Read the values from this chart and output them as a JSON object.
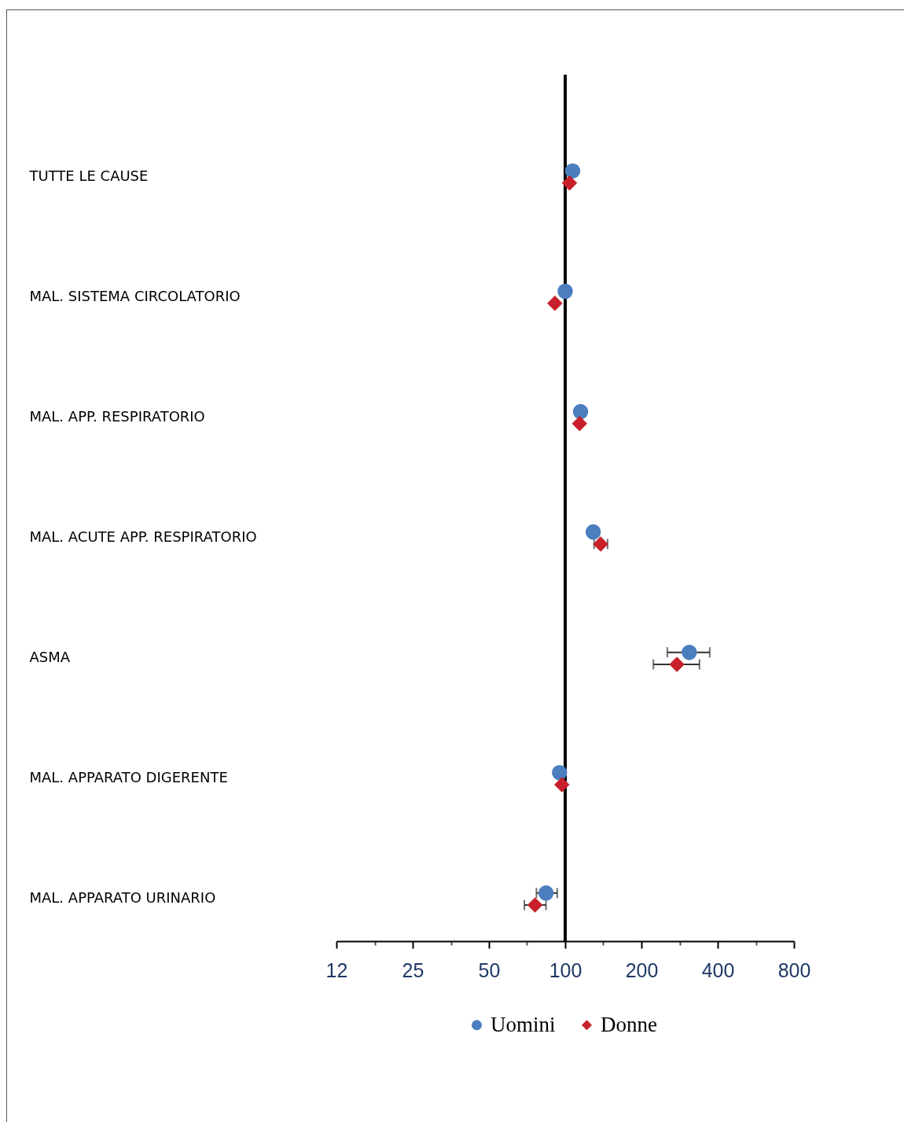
{
  "chart_data": {
    "type": "scatter",
    "orientation": "horizontal",
    "categories": [
      "TUTTE LE CAUSE",
      "MAL. SISTEMA CIRCOLATORIO",
      "MAL. APP. RESPIRATORIO",
      "MAL. ACUTE APP. RESPIRATORIO",
      "ASMA",
      "MAL. APPARATO DIGERENTE",
      "MAL. APPARATO URINARIO"
    ],
    "series": [
      {
        "name": "Uomini",
        "color": "#4a7ebf",
        "marker": "circle",
        "values": [
          107,
          100,
          115,
          129,
          309,
          95,
          84
        ],
        "errors": [
          null,
          null,
          null,
          null,
          [
            253,
            372
          ],
          null,
          [
            77,
            93
          ]
        ]
      },
      {
        "name": "Donne",
        "color": "#c8202a",
        "marker": "diamond",
        "values": [
          104,
          91,
          114,
          138,
          276,
          97,
          76
        ],
        "errors": [
          null,
          null,
          null,
          [
            130,
            147
          ],
          [
            223,
            339
          ],
          null,
          [
            69,
            84
          ]
        ]
      }
    ],
    "xlim": [
      12.5,
      800
    ],
    "xticks": [
      {
        "value": 12.5,
        "label": "12"
      },
      {
        "value": 17.7,
        "label": null
      },
      25,
      {
        "value": 35.4,
        "label": null
      },
      50,
      {
        "value": 70.7,
        "label": null
      },
      100,
      {
        "value": 141,
        "label": null
      },
      200,
      {
        "value": 283,
        "label": null
      },
      400,
      {
        "value": 566,
        "label": null
      },
      800
    ],
    "log": "x",
    "ref_lines": [
      {
        "axis": "x",
        "value": 100,
        "color": "#000000"
      }
    ],
    "legend": "bottom",
    "grid": false
  }
}
